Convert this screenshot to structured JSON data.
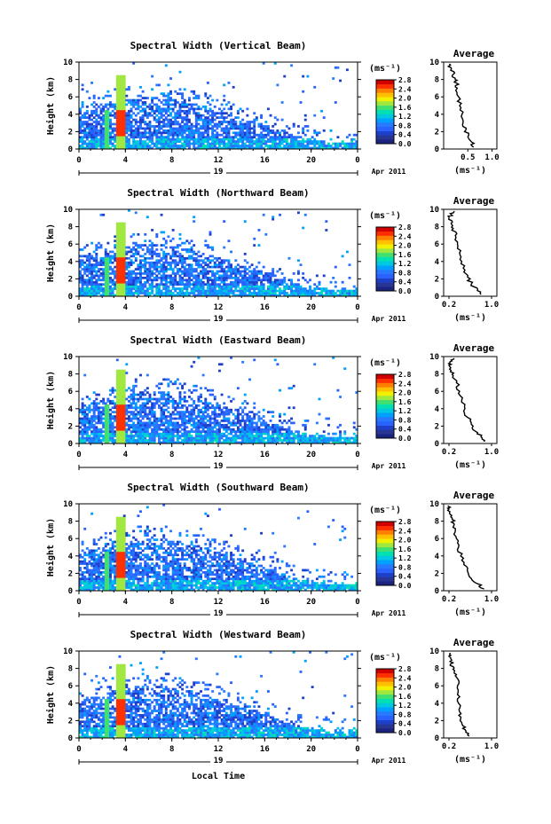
{
  "figure": {
    "xlabel": "Local Time",
    "date_label": "Apr 2011",
    "colorbar_unit": "(ms⁻¹)",
    "average_title": "Average",
    "average_xlabel": "(ms⁻¹)",
    "ylabel": "Height (km)",
    "colors": {
      "colorbar": [
        "#1a237e",
        "#283593",
        "#1e40c8",
        "#2962ff",
        "#2979ff",
        "#00a0ff",
        "#00c8e0",
        "#00e0b0",
        "#40e070",
        "#a0e840",
        "#f0f000",
        "#ffc000",
        "#ff8000",
        "#ff3000",
        "#d00000"
      ]
    }
  },
  "chart_data": [
    {
      "type": "heatmap",
      "title": "Spectral Width (Vertical Beam)",
      "xlabel": "Local Time",
      "ylabel": "Height (km)",
      "xticks": [
        "0",
        "4",
        "8",
        "12",
        "16",
        "20",
        "0"
      ],
      "xlim": [
        0,
        24
      ],
      "ylim": [
        0,
        10
      ],
      "yticks": [
        "0",
        "2",
        "4",
        "6",
        "8",
        "10"
      ],
      "day_label": "19",
      "colorbar": {
        "label": "(ms⁻¹)",
        "ticks": [
          "0.0",
          "0.4",
          "0.8",
          "1.2",
          "1.6",
          "2.0",
          "2.4",
          "2.8"
        ],
        "range": [
          0,
          2.8
        ]
      },
      "average_profile": {
        "title": "Average",
        "xlabel": "(ms⁻¹)",
        "xticks": [
          "0.5",
          "1.0"
        ],
        "xlim": [
          0,
          1.1
        ],
        "yticks": [
          "0",
          "2",
          "4",
          "6",
          "8",
          "10"
        ],
        "ylim": [
          0,
          10
        ],
        "x": [
          0.62,
          0.58,
          0.5,
          0.46,
          0.4,
          0.38,
          0.33,
          0.31,
          0.28,
          0.26,
          0.24,
          0.2,
          0.16,
          0.12
        ],
        "y": [
          0.2,
          0.8,
          1.4,
          2.2,
          3.0,
          4.0,
          5.0,
          6.0,
          7.0,
          7.6,
          8.0,
          8.6,
          9.2,
          9.8
        ]
      }
    },
    {
      "type": "heatmap",
      "title": "Spectral Width (Northward Beam)",
      "xlabel": "Local Time",
      "ylabel": "Height (km)",
      "xticks": [
        "0",
        "4",
        "8",
        "12",
        "16",
        "20",
        "0"
      ],
      "xlim": [
        0,
        24
      ],
      "ylim": [
        0,
        10
      ],
      "yticks": [
        "0",
        "2",
        "4",
        "6",
        "8",
        "10"
      ],
      "day_label": "19",
      "colorbar": {
        "label": "(ms⁻¹)",
        "ticks": [
          "0.0",
          "0.4",
          "0.8",
          "1.2",
          "1.6",
          "2.0",
          "2.4",
          "2.8"
        ],
        "range": [
          0,
          2.8
        ]
      },
      "average_profile": {
        "title": "Average",
        "xlabel": "(ms⁻¹)",
        "xticks": [
          "0.2",
          "1.0"
        ],
        "xlim": [
          0.1,
          1.1
        ],
        "yticks": [
          "0",
          "2",
          "4",
          "6",
          "8",
          "10"
        ],
        "ylim": [
          0,
          10
        ],
        "x": [
          0.8,
          0.74,
          0.62,
          0.55,
          0.5,
          0.44,
          0.4,
          0.36,
          0.32,
          0.28,
          0.24,
          0.2,
          0.24,
          0.3
        ],
        "y": [
          0.2,
          0.8,
          1.4,
          2.2,
          3.0,
          4.0,
          5.0,
          6.0,
          7.0,
          7.8,
          8.4,
          9.0,
          9.4,
          9.8
        ]
      }
    },
    {
      "type": "heatmap",
      "title": "Spectral Width (Eastward Beam)",
      "xlabel": "Local Time",
      "ylabel": "Height (km)",
      "xticks": [
        "0",
        "4",
        "8",
        "12",
        "16",
        "20",
        "0"
      ],
      "xlim": [
        0,
        24
      ],
      "ylim": [
        0,
        10
      ],
      "yticks": [
        "0",
        "2",
        "4",
        "6",
        "8",
        "10"
      ],
      "day_label": "19",
      "colorbar": {
        "label": "(ms⁻¹)",
        "ticks": [
          "0.0",
          "0.4",
          "0.8",
          "1.2",
          "1.6",
          "2.0",
          "2.4",
          "2.8"
        ],
        "range": [
          0,
          2.8
        ]
      },
      "average_profile": {
        "title": "Average",
        "xlabel": "(ms⁻¹)",
        "xticks": [
          "0.2",
          "1.0"
        ],
        "xlim": [
          0.1,
          1.1
        ],
        "yticks": [
          "0",
          "2",
          "4",
          "6",
          "8",
          "10"
        ],
        "ylim": [
          0,
          10
        ],
        "x": [
          0.86,
          0.8,
          0.7,
          0.62,
          0.55,
          0.5,
          0.44,
          0.4,
          0.34,
          0.28,
          0.24,
          0.2,
          0.22,
          0.3
        ],
        "y": [
          0.2,
          0.8,
          1.4,
          2.2,
          3.0,
          4.0,
          5.0,
          6.0,
          7.0,
          7.8,
          8.4,
          9.0,
          9.4,
          9.8
        ]
      }
    },
    {
      "type": "heatmap",
      "title": "Spectral Width (Southward Beam)",
      "xlabel": "Local Time",
      "ylabel": "Height (km)",
      "xticks": [
        "0",
        "4",
        "8",
        "12",
        "16",
        "20",
        "0"
      ],
      "xlim": [
        0,
        24
      ],
      "ylim": [
        0,
        10
      ],
      "yticks": [
        "0",
        "2",
        "4",
        "6",
        "8",
        "10"
      ],
      "day_label": "19",
      "colorbar": {
        "label": "(ms⁻¹)",
        "ticks": [
          "0.0",
          "0.4",
          "0.8",
          "1.2",
          "1.6",
          "2.0",
          "2.4",
          "2.8"
        ],
        "range": [
          0,
          2.8
        ]
      },
      "average_profile": {
        "title": "Average",
        "xlabel": "(ms⁻¹)",
        "xticks": [
          "0.2",
          "1.0"
        ],
        "xlim": [
          0.1,
          1.1
        ],
        "yticks": [
          "0",
          "2",
          "4",
          "6",
          "8",
          "10"
        ],
        "ylim": [
          0,
          10
        ],
        "x": [
          0.86,
          0.74,
          0.62,
          0.55,
          0.48,
          0.42,
          0.38,
          0.34,
          0.32,
          0.3,
          0.26,
          0.22,
          0.2,
          0.18
        ],
        "y": [
          0.2,
          0.8,
          1.4,
          2.2,
          3.0,
          4.0,
          5.0,
          6.0,
          7.0,
          7.6,
          8.2,
          8.8,
          9.4,
          9.8
        ]
      }
    },
    {
      "type": "heatmap",
      "title": "Spectral Width (Westward Beam)",
      "xlabel": "Local Time",
      "ylabel": "Height (km)",
      "xticks": [
        "0",
        "4",
        "8",
        "12",
        "16",
        "20",
        "0"
      ],
      "xlim": [
        0,
        24
      ],
      "ylim": [
        0,
        10
      ],
      "yticks": [
        "0",
        "2",
        "4",
        "6",
        "8",
        "10"
      ],
      "day_label": "19",
      "colorbar": {
        "label": "(ms⁻¹)",
        "ticks": [
          "0.0",
          "0.4",
          "0.8",
          "1.2",
          "1.6",
          "2.0",
          "2.4",
          "2.8"
        ],
        "range": [
          0,
          2.8
        ]
      },
      "average_profile": {
        "title": "Average",
        "xlabel": "(ms⁻¹)",
        "xticks": [
          "0.2",
          "1.0"
        ],
        "xlim": [
          0.1,
          1.1
        ],
        "yticks": [
          "0",
          "2",
          "4",
          "6",
          "8",
          "10"
        ],
        "ylim": [
          0,
          10
        ],
        "x": [
          0.58,
          0.52,
          0.46,
          0.42,
          0.4,
          0.38,
          0.36,
          0.36,
          0.34,
          0.3,
          0.28,
          0.22,
          0.2,
          0.22
        ],
        "y": [
          0.2,
          0.8,
          1.4,
          2.2,
          3.0,
          4.0,
          5.0,
          6.0,
          7.0,
          7.6,
          8.2,
          8.8,
          9.4,
          9.8
        ]
      }
    }
  ]
}
